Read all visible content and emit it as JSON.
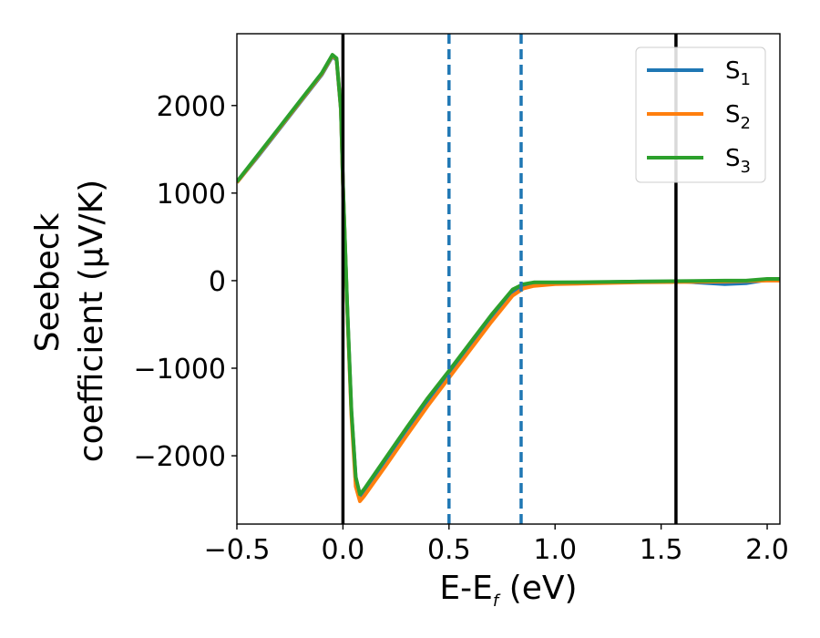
{
  "chart_data": {
    "type": "line",
    "xlabel": {
      "main": "E-E",
      "sub": "f",
      "suffix": " (eV)"
    },
    "ylabel": {
      "line1": "Seebeck",
      "line2": "coefficient  (μV/K)"
    },
    "xlim": [
      -0.5,
      2.06
    ],
    "ylim": [
      -2780,
      2820
    ],
    "x_ticks": [
      -0.5,
      0.0,
      0.5,
      1.0,
      1.5,
      2.0
    ],
    "x_tick_labels": [
      "−0.5",
      "0.0",
      "0.5",
      "1.0",
      "1.5",
      "2.0"
    ],
    "y_ticks": [
      -2000,
      -1000,
      0,
      1000,
      2000
    ],
    "y_tick_labels": [
      "−2000",
      "−1000",
      "0",
      "1000",
      "2000"
    ],
    "grid": false,
    "legend_position": "top-right",
    "vertical_lines": [
      {
        "x": 0.0,
        "style": "solid",
        "color": "#000000"
      },
      {
        "x": 0.5,
        "style": "dashed",
        "color": "#1f77b4"
      },
      {
        "x": 0.84,
        "style": "dashed",
        "color": "#1f77b4"
      },
      {
        "x": 1.57,
        "style": "solid",
        "color": "#000000"
      }
    ],
    "series": [
      {
        "name": {
          "main": "S",
          "sub": "1"
        },
        "color": "#1f77b4",
        "x": [
          -0.5,
          -0.4,
          -0.3,
          -0.2,
          -0.1,
          -0.05,
          -0.03,
          -0.01,
          0.0,
          0.02,
          0.04,
          0.06,
          0.08,
          0.1,
          0.2,
          0.3,
          0.4,
          0.5,
          0.6,
          0.7,
          0.8,
          0.85,
          0.9,
          1.0,
          1.2,
          1.4,
          1.6,
          1.8,
          1.9,
          2.0,
          2.06
        ],
        "y": [
          1120,
          1420,
          1730,
          2040,
          2350,
          2560,
          2520,
          1950,
          1100,
          -300,
          -1500,
          -2250,
          -2460,
          -2400,
          -2050,
          -1700,
          -1370,
          -1060,
          -740,
          -420,
          -130,
          -60,
          -40,
          -30,
          -20,
          -10,
          -10,
          -40,
          -30,
          10,
          10
        ]
      },
      {
        "name": {
          "main": "S",
          "sub": "2"
        },
        "color": "#ff7f0e",
        "x": [
          -0.5,
          -0.4,
          -0.3,
          -0.2,
          -0.1,
          -0.05,
          -0.03,
          -0.01,
          0.0,
          0.02,
          0.04,
          0.06,
          0.08,
          0.1,
          0.2,
          0.3,
          0.4,
          0.5,
          0.6,
          0.7,
          0.8,
          0.85,
          0.9,
          1.0,
          1.2,
          1.4,
          1.6,
          1.8,
          1.9,
          2.0,
          2.06
        ],
        "y": [
          1120,
          1430,
          1740,
          2050,
          2360,
          2570,
          2530,
          1960,
          1100,
          -320,
          -1550,
          -2350,
          -2520,
          -2460,
          -2120,
          -1770,
          -1430,
          -1110,
          -790,
          -470,
          -170,
          -90,
          -60,
          -40,
          -30,
          -20,
          -15,
          -10,
          -5,
          0,
          0
        ]
      },
      {
        "name": {
          "main": "S",
          "sub": "3"
        },
        "color": "#2ca02c",
        "x": [
          -0.5,
          -0.4,
          -0.3,
          -0.2,
          -0.1,
          -0.05,
          -0.03,
          -0.01,
          0.0,
          0.02,
          0.04,
          0.06,
          0.08,
          0.1,
          0.2,
          0.3,
          0.4,
          0.5,
          0.6,
          0.7,
          0.8,
          0.85,
          0.9,
          1.0,
          1.2,
          1.4,
          1.6,
          1.8,
          1.9,
          2.0,
          2.06
        ],
        "y": [
          1130,
          1440,
          1750,
          2060,
          2370,
          2580,
          2540,
          1970,
          1120,
          -280,
          -1480,
          -2240,
          -2440,
          -2380,
          -2030,
          -1680,
          -1340,
          -1030,
          -710,
          -390,
          -100,
          -40,
          -20,
          -20,
          -15,
          -10,
          -5,
          0,
          0,
          20,
          20
        ]
      }
    ]
  }
}
